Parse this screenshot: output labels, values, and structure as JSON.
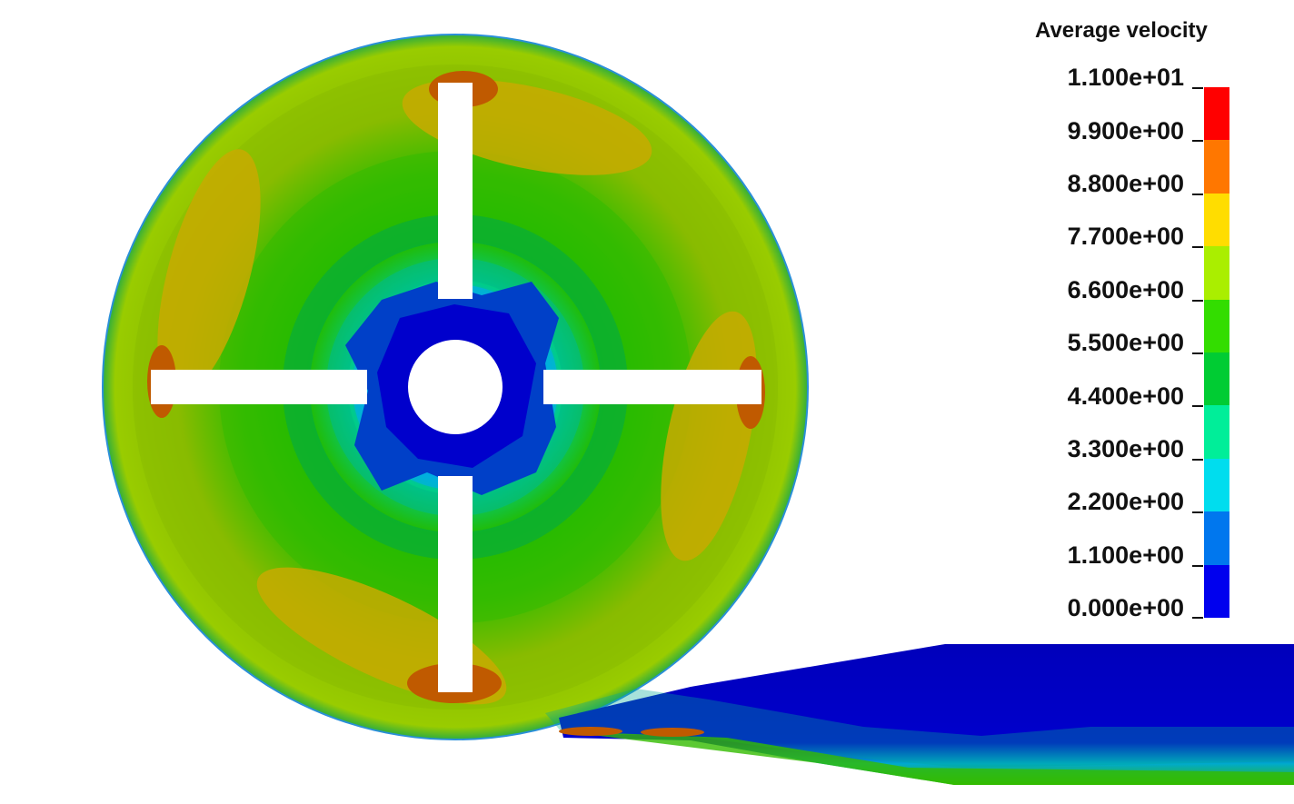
{
  "legend": {
    "title": "Average velocity",
    "ticks": [
      "1.100e+01",
      "9.900e+00",
      "8.800e+00",
      "7.700e+00",
      "6.600e+00",
      "5.500e+00",
      "4.400e+00",
      "3.300e+00",
      "2.200e+00",
      "1.100e+00",
      "0.000e+00"
    ],
    "colors_top_to_bottom": [
      "#ff0000",
      "#ff7700",
      "#ffdd00",
      "#aaee00",
      "#33dd00",
      "#00cc33",
      "#00ee99",
      "#00ddee",
      "#0077ee",
      "#0000ee"
    ]
  }
}
